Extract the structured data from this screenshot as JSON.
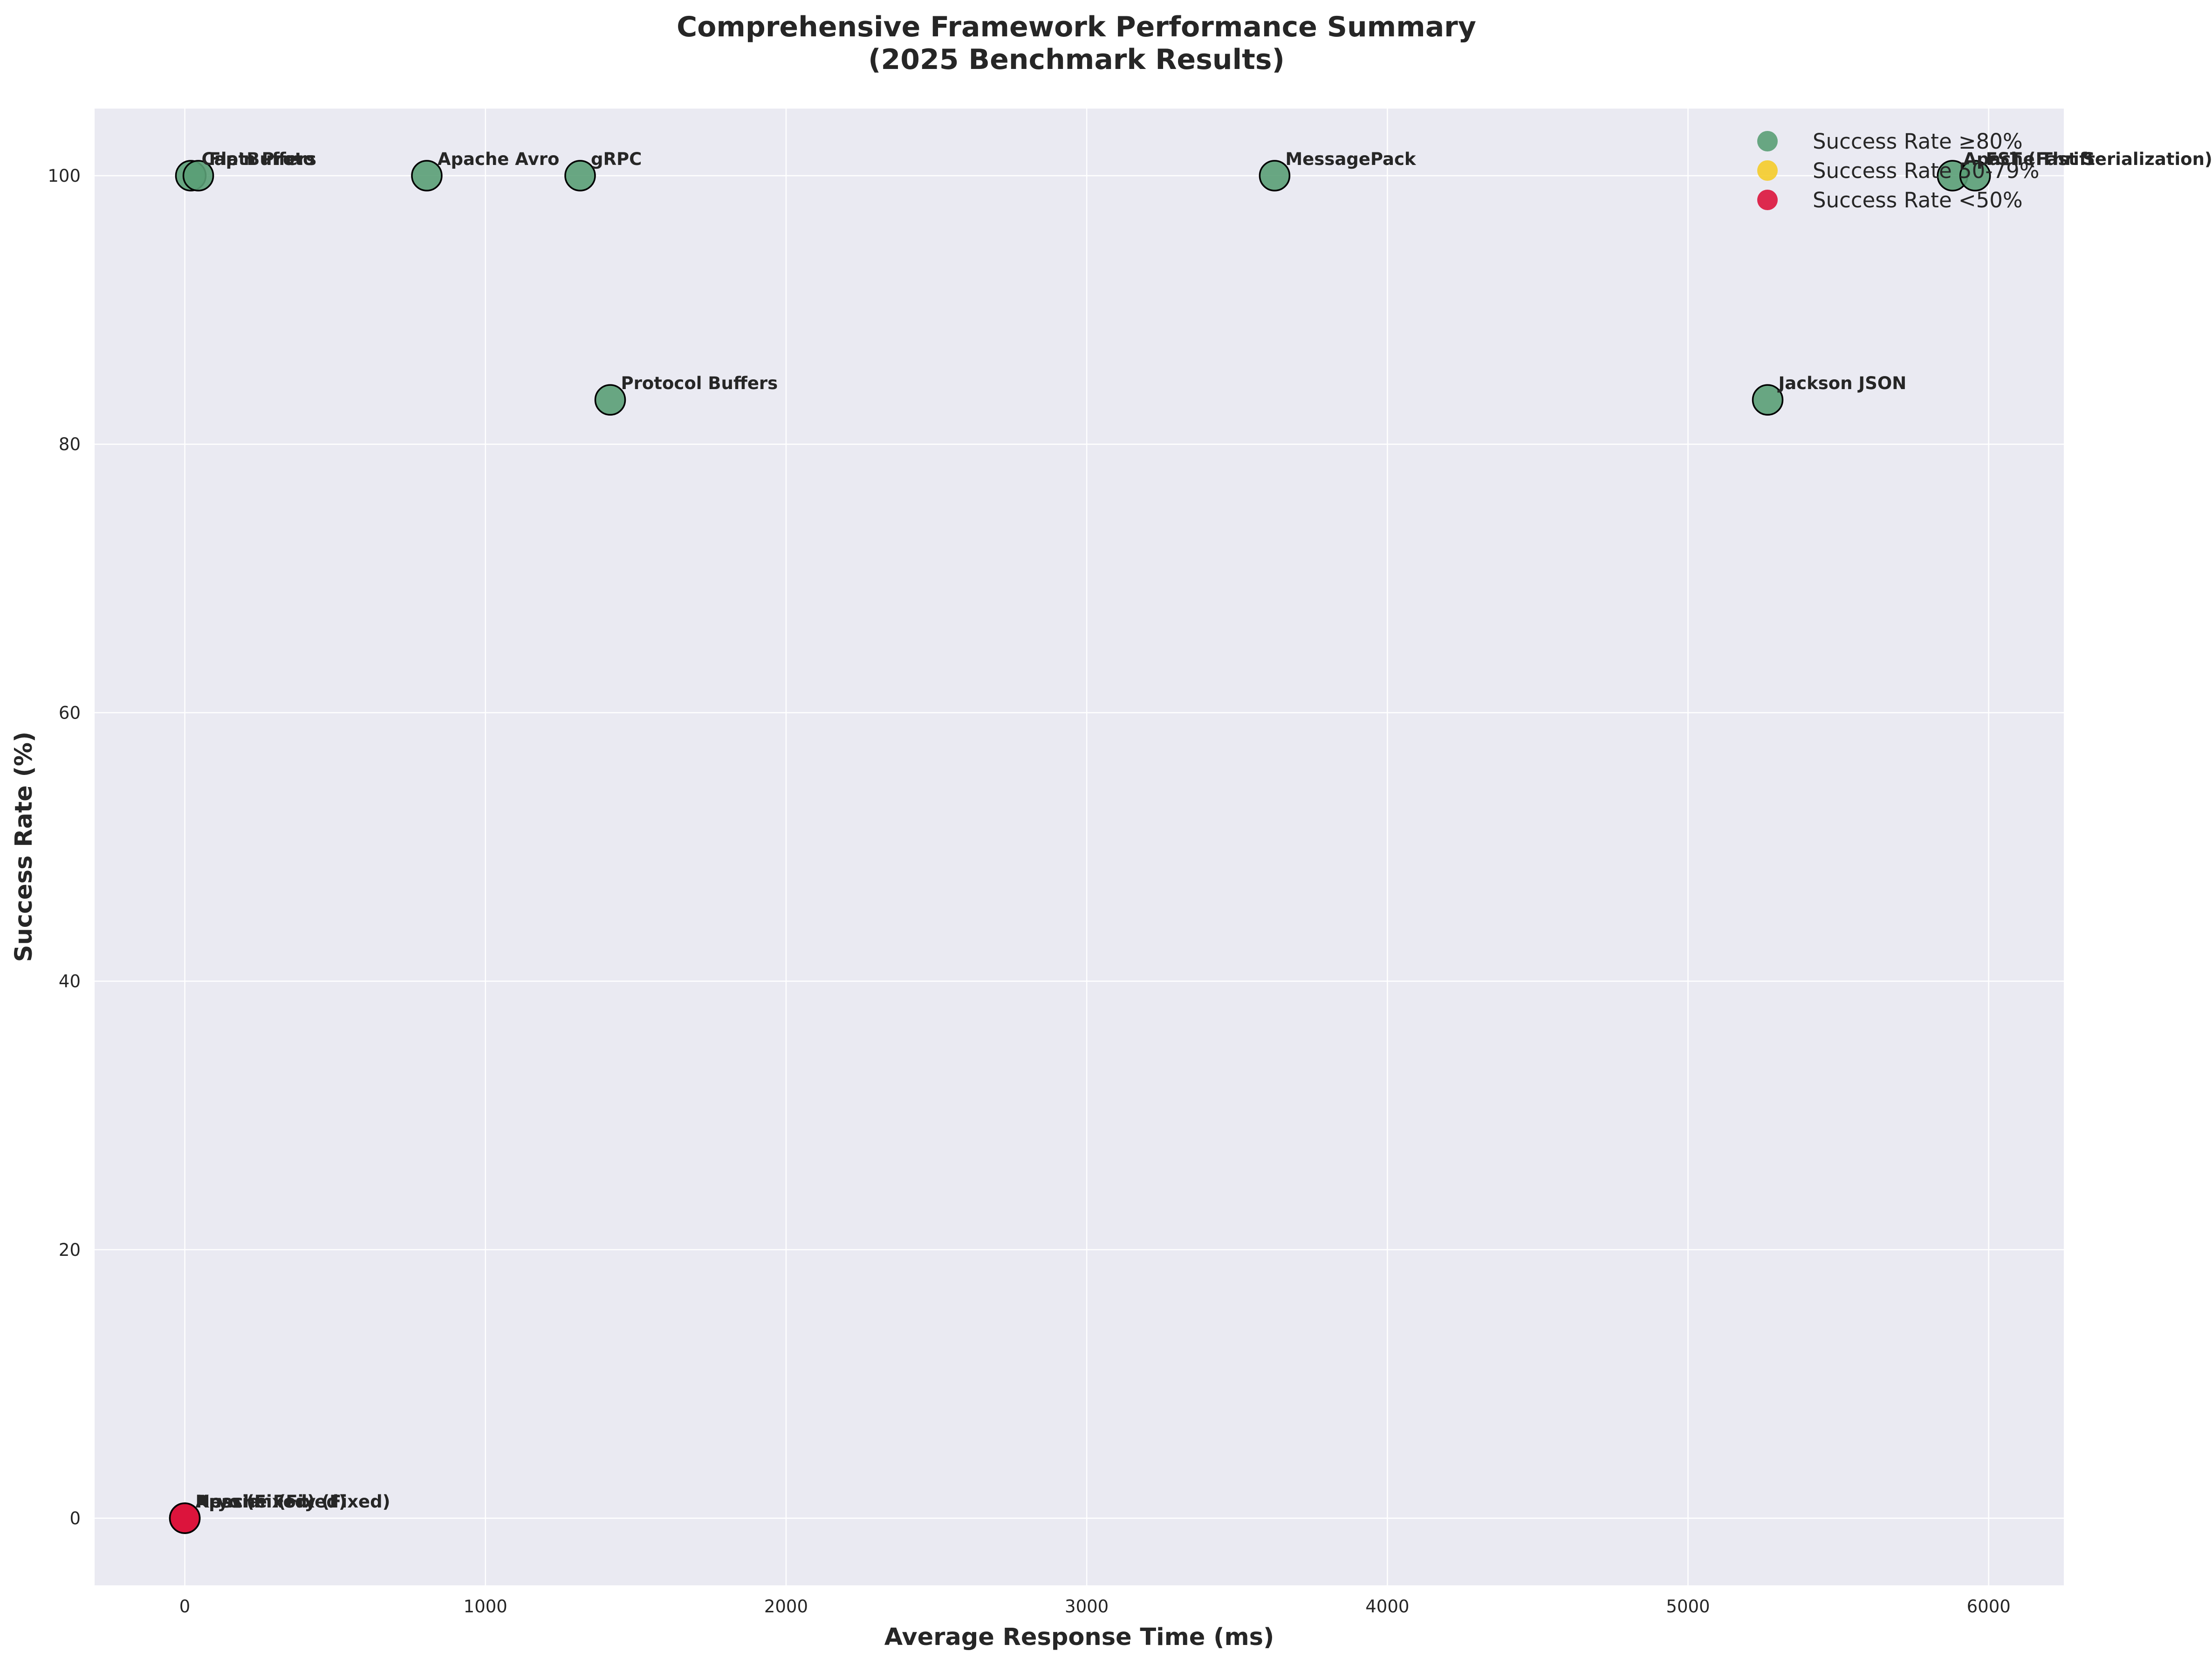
{
  "chart_data": {
    "type": "scatter",
    "title": "Comprehensive Framework Performance Summary",
    "subtitle": "(2025 Benchmark Results)",
    "xlabel": "Average Response Time (ms)",
    "ylabel": "Success Rate (%)",
    "xlim": [
      -300,
      6250
    ],
    "ylim": [
      -5,
      105
    ],
    "xticks": [
      0,
      1000,
      2000,
      3000,
      4000,
      5000,
      6000
    ],
    "yticks": [
      0,
      20,
      40,
      60,
      80,
      100
    ],
    "grid": true,
    "legend_position": "top-right",
    "colors": {
      "high": "#5a9e75",
      "mid": "#f5cc2a",
      "low": "#dc143c",
      "plot_bg": "#eaeaf2",
      "grid": "#ffffff"
    },
    "legend": [
      {
        "label": "Success Rate ≥80%",
        "color": "#5a9e75"
      },
      {
        "label": "Success Rate 50-79%",
        "color": "#f5cc2a"
      },
      {
        "label": "Success Rate <50%",
        "color": "#dc143c"
      }
    ],
    "points": [
      {
        "name": "Cap'n Proto",
        "x": 20,
        "y": 100,
        "group": "high"
      },
      {
        "name": "FlatBuffers",
        "x": 45,
        "y": 100,
        "group": "high"
      },
      {
        "name": "Apache Avro",
        "x": 805,
        "y": 100,
        "group": "high"
      },
      {
        "name": "gRPC",
        "x": 1315,
        "y": 100,
        "group": "high"
      },
      {
        "name": "MessagePack",
        "x": 3625,
        "y": 100,
        "group": "high"
      },
      {
        "name": "Apache Thrift",
        "x": 5880,
        "y": 100,
        "group": "high"
      },
      {
        "name": "FST (Fast Serialization)",
        "x": 5955,
        "y": 100,
        "group": "high"
      },
      {
        "name": "Protocol Buffers",
        "x": 1415,
        "y": 83.3,
        "group": "high"
      },
      {
        "name": "Jackson JSON",
        "x": 5265,
        "y": 83.3,
        "group": "high"
      },
      {
        "name": "Kryo (Fixed)",
        "x": 0,
        "y": 0,
        "group": "low"
      },
      {
        "name": "Hessian (Fixed)",
        "x": 0,
        "y": 0,
        "group": "low"
      },
      {
        "name": "Apache Fory (Fixed)",
        "x": 0,
        "y": 0,
        "group": "low"
      }
    ]
  }
}
